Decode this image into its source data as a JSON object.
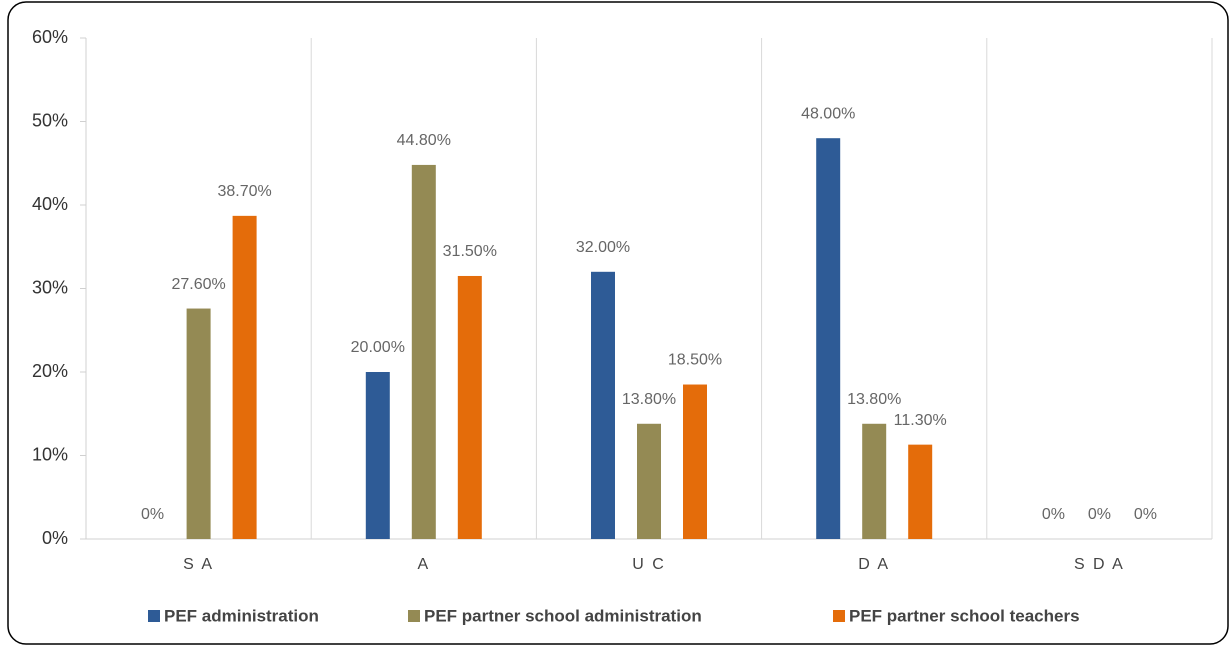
{
  "chart_data": {
    "type": "bar",
    "categories": [
      "S A",
      "A",
      "U C",
      "D A",
      "S D A"
    ],
    "series": [
      {
        "name": "PEF administration",
        "color": "#2e5b96",
        "values": [
          0,
          20,
          32,
          48,
          0
        ],
        "value_labels": [
          "0%",
          "20.00%",
          "32.00%",
          "48.00%",
          "0%"
        ]
      },
      {
        "name": "PEF partner school administration",
        "color": "#948a54",
        "values": [
          27.6,
          44.8,
          13.8,
          13.8,
          0
        ],
        "value_labels": [
          "27.60%",
          "44.80%",
          "13.80%",
          "13.80%",
          "0%"
        ]
      },
      {
        "name": "PEF partner school teachers",
        "color": "#e46c0a",
        "values": [
          38.7,
          31.5,
          18.5,
          11.3,
          0
        ],
        "value_labels": [
          "38.70%",
          "31.50%",
          "18.50%",
          "11.30%",
          "0%"
        ]
      }
    ],
    "ylim": [
      0,
      60
    ],
    "yticks": [
      {
        "value": 0,
        "label": "0%"
      },
      {
        "value": 10,
        "label": "10%"
      },
      {
        "value": 20,
        "label": "20%"
      },
      {
        "value": 30,
        "label": "30%"
      },
      {
        "value": 40,
        "label": "40%"
      },
      {
        "value": 50,
        "label": "50%"
      },
      {
        "value": 60,
        "label": "60%"
      }
    ],
    "legend": "bottom"
  }
}
